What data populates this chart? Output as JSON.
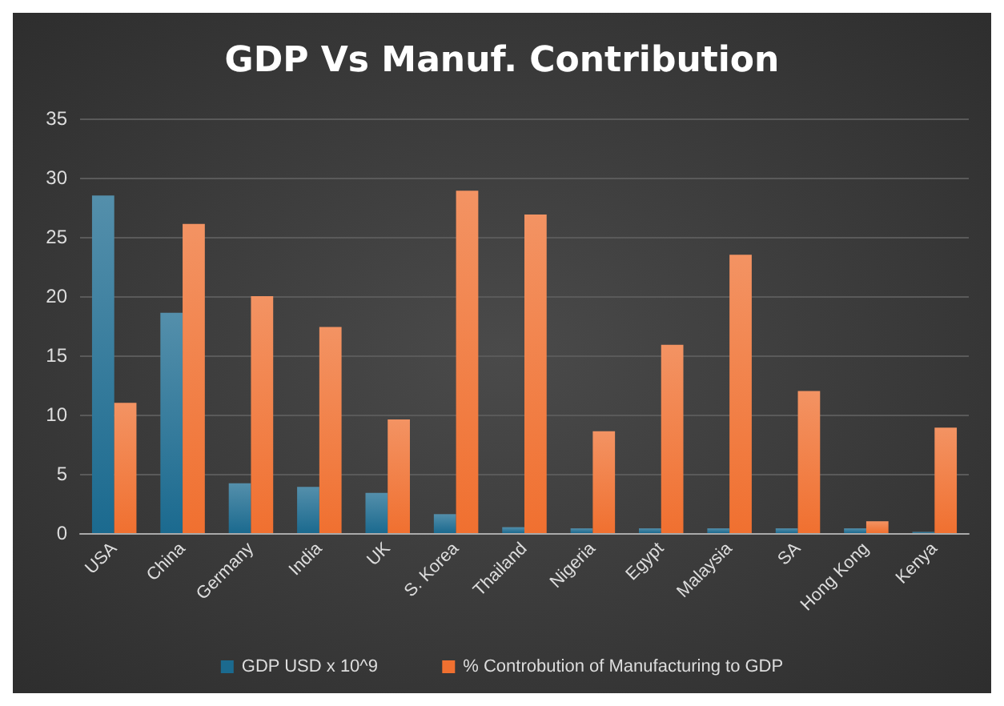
{
  "chart_data": {
    "type": "bar",
    "title": "GDP Vs Manuf. Contribution",
    "categories": [
      "USA",
      "China",
      "Germany",
      "India",
      "UK",
      "S. Korea",
      "Thailand",
      "Nigeria",
      "Egypt",
      "Malaysia",
      "SA",
      "Hong Kong",
      "Kenya"
    ],
    "series": [
      {
        "name": "GDP USD x 10^9",
        "color": "#1b6a8f",
        "values": [
          28.5,
          18.6,
          4.2,
          3.9,
          3.4,
          1.6,
          0.5,
          0.4,
          0.4,
          0.4,
          0.4,
          0.4,
          0.1
        ]
      },
      {
        "name": "% Controbution of Manufacturing to GDP",
        "color": "#f07030",
        "values": [
          11,
          26.1,
          20,
          17.4,
          9.6,
          28.9,
          26.9,
          8.6,
          15.9,
          23.5,
          12,
          1,
          8.9
        ]
      }
    ],
    "ylim": [
      0,
      35
    ],
    "yticks": [
      0,
      5,
      10,
      15,
      20,
      25,
      30,
      35
    ],
    "grid": "y",
    "legend": "bottom"
  }
}
